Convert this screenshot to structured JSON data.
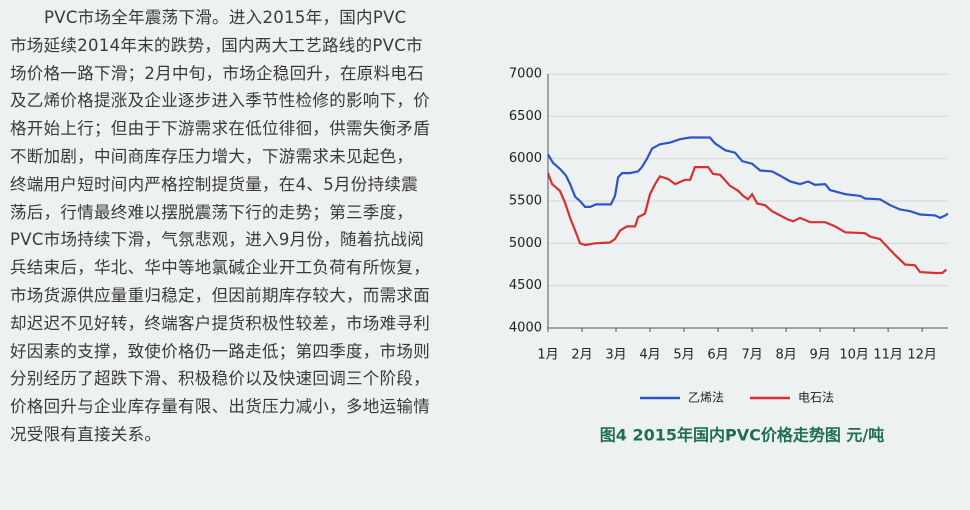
{
  "document": {
    "lines": [
      "PVC市场全年震荡下滑。进入2015年，国内PVC",
      "市场延续2014年末的跌势，国内两大工艺路线的PVC市",
      "场价格一路下滑；2月中旬，市场企稳回升，在原料电石",
      "及乙烯价格提涨及企业逐步进入季节性检修的影响下，价",
      "格开始上行；但由于下游需求在低位徘徊，供需失衡矛盾",
      "不断加剧，中间商库存压力增大，下游需求未见起色，",
      "终端用户短时间内严格控制提货量，在4、5月份持续震",
      "荡后，行情最终难以摆脱震荡下行的走势；第三季度，",
      "PVC市场持续下滑，气氛悲观，进入9月份，随着抗战阅",
      "兵结束后，华北、华中等地氯碱企业开工负荷有所恢复，",
      "市场货源供应量重归稳定，但因前期库存较大，而需求面",
      "却迟迟不见好转，终端客户提货积极性较差，市场难寻利",
      "好因素的支撑，致使价格仍一路走低；第四季度，市场则",
      "分别经历了超跌下滑、积极稳价以及快速回调三个阶段，",
      "价格回升与企业库存量有限、出货压力减小，多地运输情",
      "况受限有直接关系。"
    ]
  },
  "chart_data": {
    "type": "line",
    "title": "图4  2015年国内PVC价格走势图  元/吨",
    "xlim": [
      1,
      12.76
    ],
    "ylim": [
      4000,
      7000
    ],
    "xticks": [
      {
        "value": 1,
        "label": "1月"
      },
      {
        "value": 2,
        "label": "2月"
      },
      {
        "value": 3,
        "label": "3月"
      },
      {
        "value": 4,
        "label": "4月"
      },
      {
        "value": 5,
        "label": "5月"
      },
      {
        "value": 6,
        "label": "6月"
      },
      {
        "value": 7,
        "label": "7月"
      },
      {
        "value": 8,
        "label": "8月"
      },
      {
        "value": 9,
        "label": "9月"
      },
      {
        "value": 10,
        "label": "10月"
      },
      {
        "value": 11,
        "label": "11月"
      },
      {
        "value": 12,
        "label": "12月"
      }
    ],
    "yticks": [
      4000,
      4500,
      5000,
      5500,
      6000,
      6500,
      7000
    ],
    "grid": true,
    "legend": "bottom",
    "series": [
      {
        "name": "乙烯法",
        "color": "#2d55c8",
        "x": [
          1.0,
          1.15,
          1.35,
          1.53,
          1.65,
          1.8,
          1.94,
          2.09,
          2.24,
          2.41,
          2.68,
          2.85,
          2.97,
          3.06,
          3.18,
          3.41,
          3.65,
          3.76,
          3.91,
          4.06,
          4.29,
          4.59,
          4.88,
          5.18,
          5.76,
          5.91,
          6.21,
          6.5,
          6.71,
          7.0,
          7.24,
          7.59,
          7.82,
          8.12,
          8.41,
          8.65,
          8.85,
          9.15,
          9.29,
          9.74,
          10.18,
          10.32,
          10.76,
          11.06,
          11.35,
          11.65,
          11.94,
          12.38,
          12.53,
          12.68,
          12.76
        ],
        "values": [
          6050,
          5950,
          5880,
          5800,
          5700,
          5550,
          5500,
          5430,
          5430,
          5460,
          5460,
          5460,
          5560,
          5780,
          5830,
          5830,
          5850,
          5900,
          6000,
          6120,
          6170,
          6190,
          6230,
          6250,
          6250,
          6180,
          6100,
          6070,
          5970,
          5940,
          5860,
          5850,
          5800,
          5730,
          5700,
          5730,
          5690,
          5700,
          5630,
          5580,
          5560,
          5530,
          5520,
          5450,
          5400,
          5380,
          5340,
          5330,
          5300,
          5330,
          5350
        ]
      },
      {
        "name": "电石法",
        "color": "#d63030",
        "x": [
          1.0,
          1.12,
          1.35,
          1.5,
          1.65,
          1.8,
          1.94,
          2.09,
          2.38,
          2.82,
          2.97,
          3.12,
          3.32,
          3.56,
          3.65,
          3.85,
          4.0,
          4.15,
          4.29,
          4.53,
          4.74,
          5.03,
          5.18,
          5.32,
          5.71,
          5.85,
          6.06,
          6.35,
          6.59,
          6.74,
          6.88,
          7.0,
          7.15,
          7.38,
          7.59,
          7.82,
          8.06,
          8.21,
          8.41,
          8.71,
          9.15,
          9.44,
          9.74,
          10.32,
          10.47,
          10.76,
          11.0,
          11.21,
          11.5,
          11.79,
          11.94,
          12.38,
          12.59,
          12.71
        ],
        "values": [
          5830,
          5700,
          5620,
          5480,
          5300,
          5150,
          5000,
          4980,
          5000,
          5010,
          5050,
          5150,
          5200,
          5200,
          5310,
          5350,
          5580,
          5700,
          5790,
          5760,
          5700,
          5750,
          5750,
          5900,
          5900,
          5820,
          5810,
          5680,
          5620,
          5560,
          5520,
          5580,
          5470,
          5450,
          5380,
          5330,
          5280,
          5260,
          5300,
          5250,
          5250,
          5200,
          5130,
          5120,
          5080,
          5050,
          4950,
          4860,
          4750,
          4740,
          4660,
          4650,
          4650,
          4690
        ]
      }
    ]
  }
}
